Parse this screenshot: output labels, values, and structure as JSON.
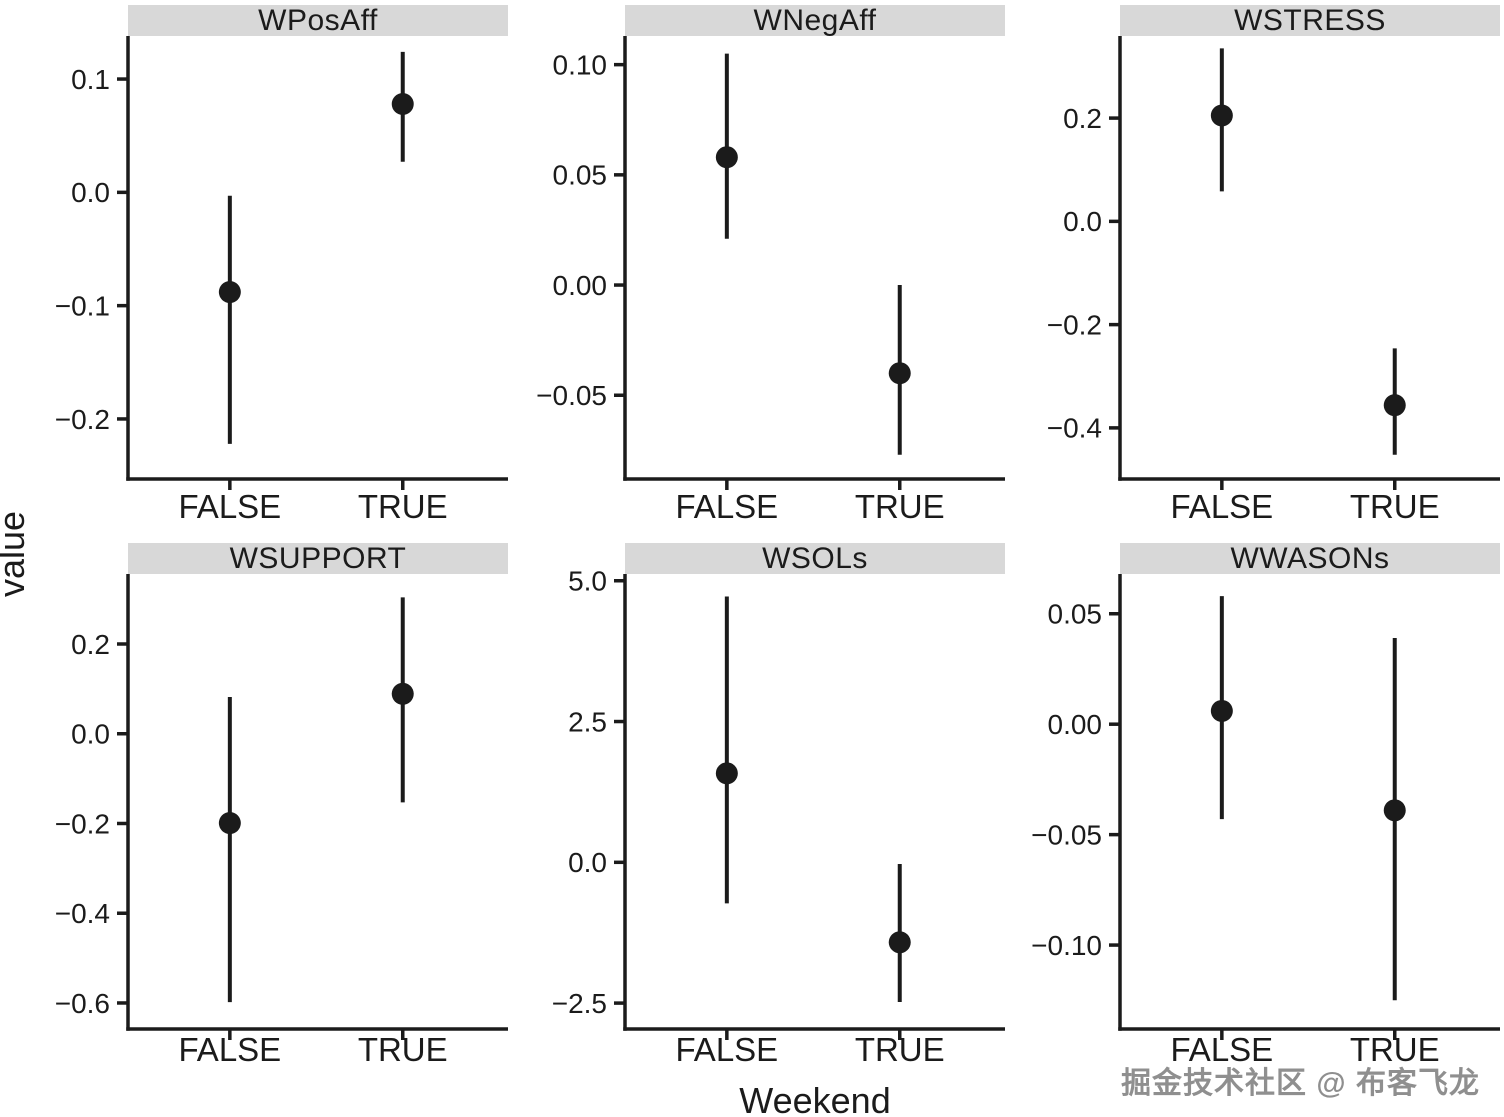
{
  "figure": {
    "background": "#ffffff",
    "ink_color": "#1b1b1b",
    "strip_fill": "#d8d8d8"
  },
  "watermark": {
    "text": "掘金技术社区 @ 布客飞龙",
    "color": "#8f8f8f"
  },
  "chart_data": {
    "type": "scatter",
    "subtype": "point-estimates-with-error-bars",
    "title": "",
    "xlabel": "Weekend",
    "ylabel": "value",
    "categories": [
      "FALSE",
      "TRUE"
    ],
    "grid": false,
    "legend": "none",
    "facets": [
      {
        "title": "WPosAff",
        "ylim": [
          -0.253,
          0.138
        ],
        "yticks": [
          {
            "v": 0.1,
            "label": "0.1"
          },
          {
            "v": 0.0,
            "label": "0.0"
          },
          {
            "v": -0.1,
            "label": "−0.1"
          },
          {
            "v": -0.2,
            "label": "−0.2"
          }
        ],
        "points": [
          {
            "category": "FALSE",
            "mean": -0.088,
            "lo": -0.222,
            "hi": -0.003
          },
          {
            "category": "TRUE",
            "mean": 0.078,
            "lo": 0.027,
            "hi": 0.124
          }
        ]
      },
      {
        "title": "WNegAff",
        "ylim": [
          -0.088,
          0.113
        ],
        "yticks": [
          {
            "v": 0.1,
            "label": "0.10"
          },
          {
            "v": 0.05,
            "label": "0.05"
          },
          {
            "v": 0.0,
            "label": "0.00"
          },
          {
            "v": -0.05,
            "label": "−0.05"
          }
        ],
        "points": [
          {
            "category": "FALSE",
            "mean": 0.058,
            "lo": 0.021,
            "hi": 0.105
          },
          {
            "category": "TRUE",
            "mean": -0.04,
            "lo": -0.077,
            "hi": 0.0
          }
        ]
      },
      {
        "title": "WSTRESS",
        "ylim": [
          -0.499,
          0.359
        ],
        "yticks": [
          {
            "v": 0.2,
            "label": "0.2"
          },
          {
            "v": 0.0,
            "label": "0.0"
          },
          {
            "v": -0.2,
            "label": "−0.2"
          },
          {
            "v": -0.4,
            "label": "−0.4"
          }
        ],
        "points": [
          {
            "category": "FALSE",
            "mean": 0.205,
            "lo": 0.058,
            "hi": 0.335
          },
          {
            "category": "TRUE",
            "mean": -0.356,
            "lo": -0.452,
            "hi": -0.246
          }
        ]
      },
      {
        "title": "WSUPPORT",
        "ylim": [
          -0.658,
          0.356
        ],
        "yticks": [
          {
            "v": 0.2,
            "label": "0.2"
          },
          {
            "v": 0.0,
            "label": "0.0"
          },
          {
            "v": -0.2,
            "label": "−0.2"
          },
          {
            "v": -0.4,
            "label": "−0.4"
          },
          {
            "v": -0.6,
            "label": "−0.6"
          }
        ],
        "points": [
          {
            "category": "FALSE",
            "mean": -0.199,
            "lo": -0.598,
            "hi": 0.082
          },
          {
            "category": "TRUE",
            "mean": 0.089,
            "lo": -0.153,
            "hi": 0.304
          }
        ]
      },
      {
        "title": "WSOLs",
        "ylim": [
          -2.96,
          5.12
        ],
        "yticks": [
          {
            "v": 5.0,
            "label": "5.0"
          },
          {
            "v": 2.5,
            "label": "2.5"
          },
          {
            "v": 0.0,
            "label": "0.0"
          },
          {
            "v": -2.5,
            "label": "−2.5"
          }
        ],
        "points": [
          {
            "category": "FALSE",
            "mean": 1.58,
            "lo": -0.73,
            "hi": 4.72
          },
          {
            "category": "TRUE",
            "mean": -1.42,
            "lo": -2.48,
            "hi": -0.03
          }
        ]
      },
      {
        "title": "WWASONs",
        "ylim": [
          -0.138,
          0.068
        ],
        "yticks": [
          {
            "v": 0.05,
            "label": "0.05"
          },
          {
            "v": 0.0,
            "label": "0.00"
          },
          {
            "v": -0.05,
            "label": "−0.05"
          },
          {
            "v": -0.1,
            "label": "−0.10"
          }
        ],
        "points": [
          {
            "category": "FALSE",
            "mean": 0.006,
            "lo": -0.043,
            "hi": 0.058
          },
          {
            "category": "TRUE",
            "mean": -0.039,
            "lo": -0.125,
            "hi": 0.039
          }
        ]
      }
    ]
  }
}
